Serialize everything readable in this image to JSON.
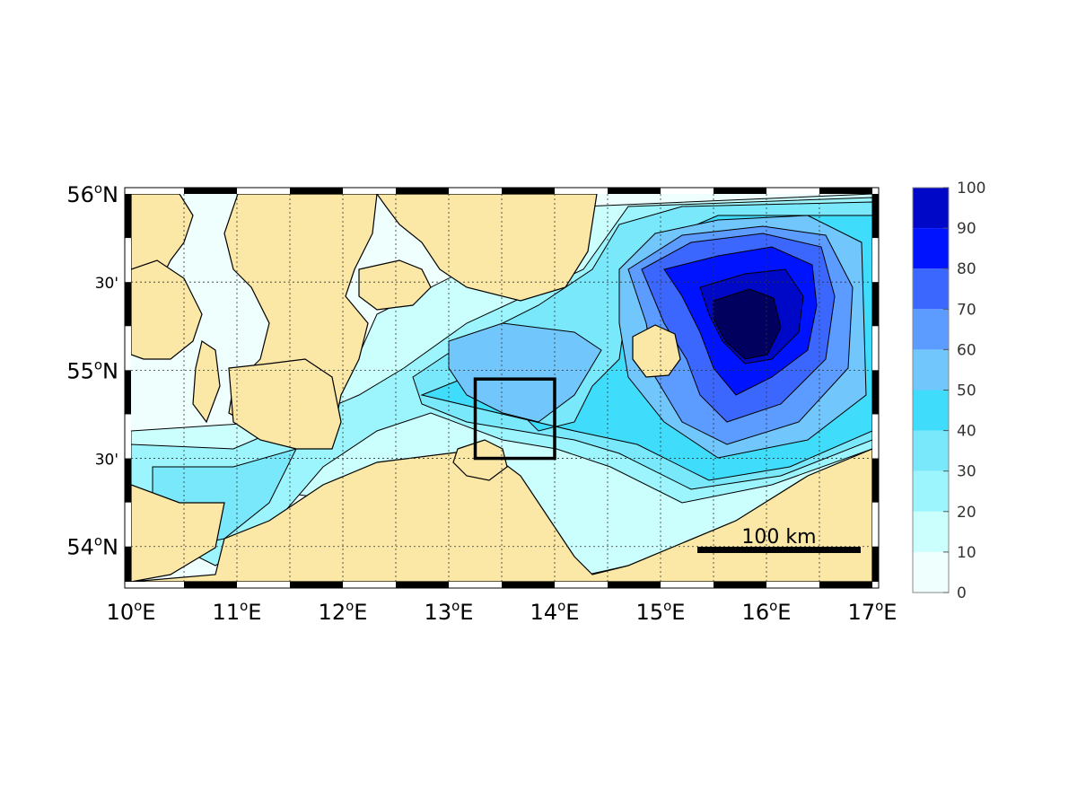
{
  "map": {
    "land_color": "#fbe8a6",
    "x_ticks": [
      {
        "base": "10",
        "deg": "o",
        "hemi": "E"
      },
      {
        "base": "11",
        "deg": "o",
        "hemi": "E"
      },
      {
        "base": "12",
        "deg": "o",
        "hemi": "E"
      },
      {
        "base": "13",
        "deg": "o",
        "hemi": "E"
      },
      {
        "base": "14",
        "deg": "o",
        "hemi": "E"
      },
      {
        "base": "15",
        "deg": "o",
        "hemi": "E"
      },
      {
        "base": "16",
        "deg": "o",
        "hemi": "E"
      },
      {
        "base": "17",
        "deg": "o",
        "hemi": "E"
      }
    ],
    "y_ticks": [
      {
        "base": "56",
        "deg": "o",
        "hemi": "N"
      },
      {
        "base": "30'"
      },
      {
        "base": "55",
        "deg": "o",
        "hemi": "N"
      },
      {
        "base": "30'"
      },
      {
        "base": "54",
        "deg": "o",
        "hemi": "N"
      }
    ],
    "scale_bar_label": "100 km",
    "study_box_lon": [
      13.25,
      14.0
    ],
    "study_box_lat": [
      54.5,
      54.95
    ]
  },
  "colorbar": {
    "ticks": [
      "100",
      "90",
      "80",
      "70",
      "60",
      "50",
      "40",
      "30",
      "20",
      "10",
      "0"
    ],
    "colors": [
      "#effffe",
      "#cbfffd",
      "#9cf5fc",
      "#79e8fb",
      "#3fdcfb",
      "#71c7fc",
      "#5c9bff",
      "#3c67ff",
      "#0013ff",
      "#0008c8",
      "#01005e"
    ]
  }
}
